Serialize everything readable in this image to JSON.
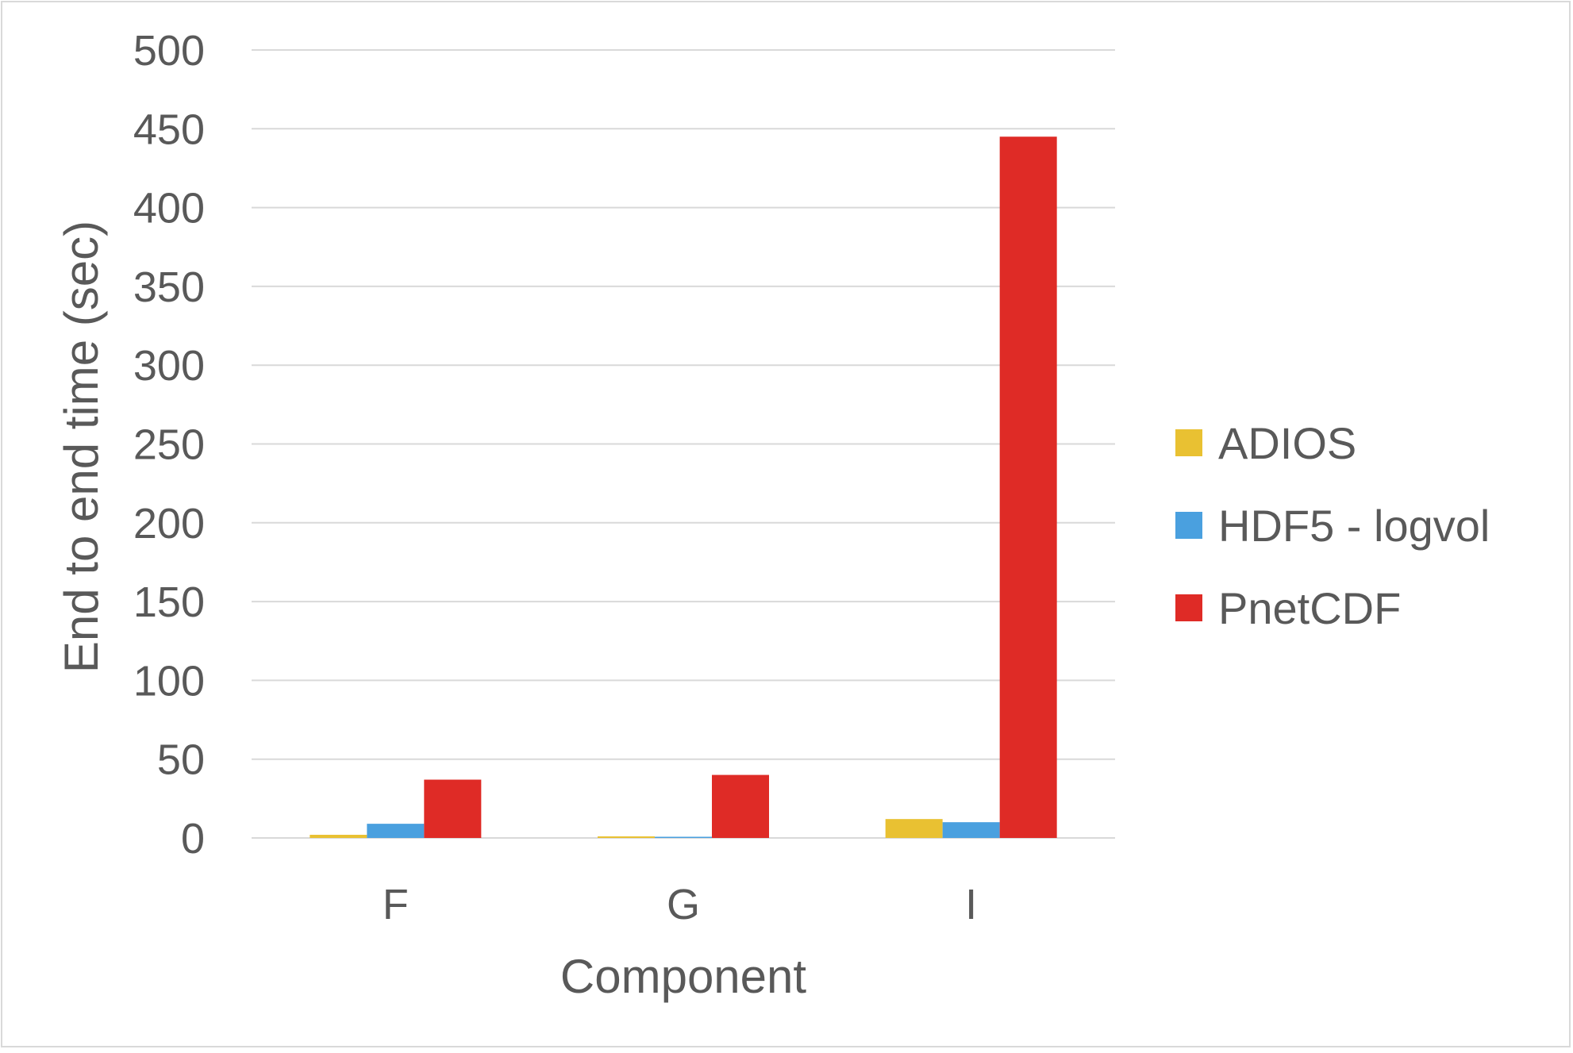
{
  "chart_data": {
    "type": "bar",
    "title": "",
    "xlabel": "Component",
    "ylabel": "End to end time (sec)",
    "categories": [
      "F",
      "G",
      "I"
    ],
    "ylim": [
      0,
      500
    ],
    "yticks": [
      "0",
      "50",
      "100",
      "150",
      "200",
      "250",
      "300",
      "350",
      "400",
      "450",
      "500"
    ],
    "grid": true,
    "legend_position": "right",
    "series": [
      {
        "name": "ADIOS",
        "color": "#e9c132",
        "values": [
          2,
          1,
          12
        ]
      },
      {
        "name": "HDF5 - logvol",
        "color": "#4aa0df",
        "values": [
          9,
          0.5,
          10
        ]
      },
      {
        "name": "PnetCDF",
        "color": "#df2b26",
        "values": [
          37,
          40,
          445
        ]
      }
    ]
  }
}
